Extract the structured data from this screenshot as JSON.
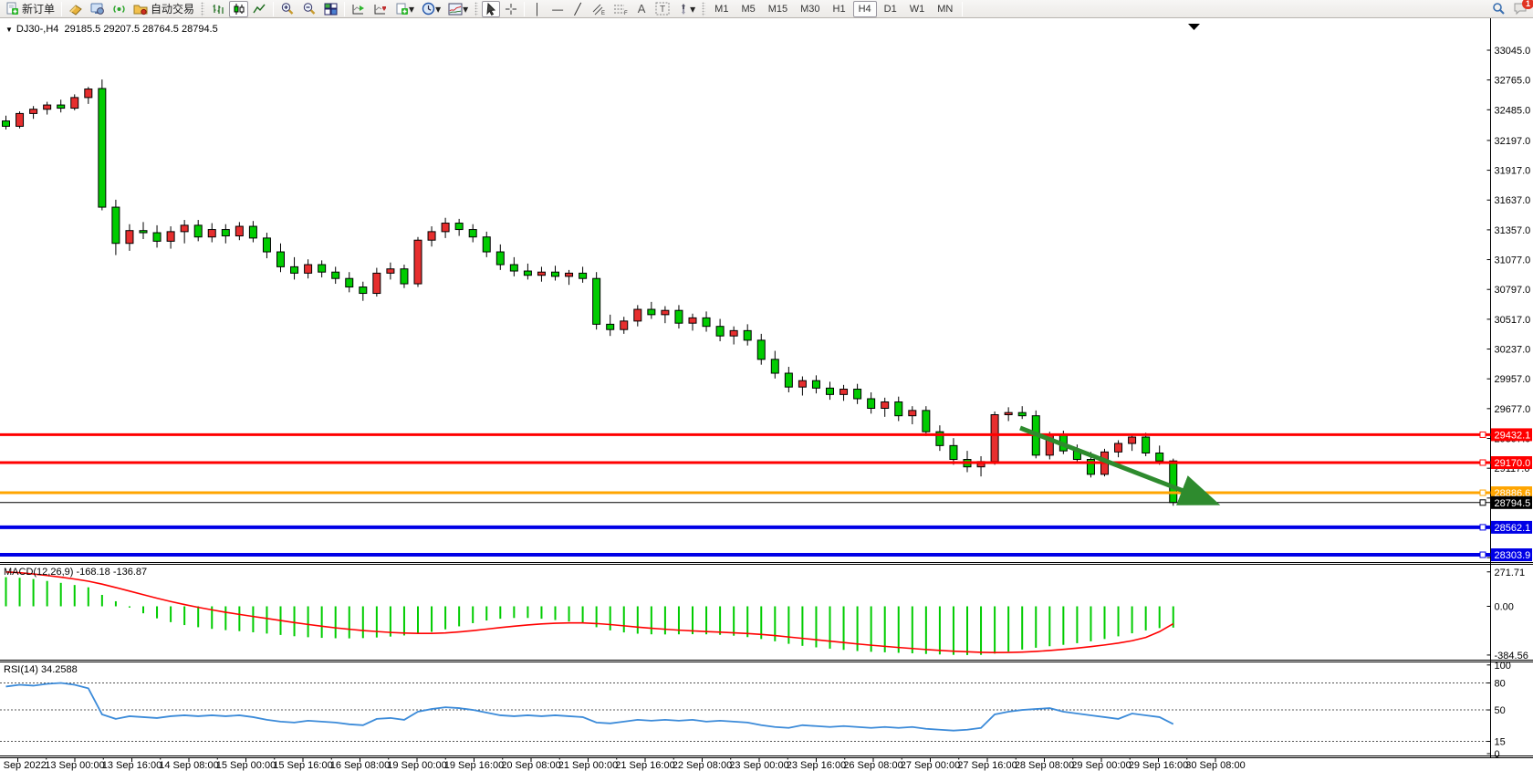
{
  "toolbar": {
    "new_order": "新订单",
    "auto_trading": "自动交易",
    "text_tool": "A",
    "label_tool": "T",
    "channel_sub": "E",
    "fibo_sub": "F",
    "timeframes": [
      "M1",
      "M5",
      "M15",
      "M30",
      "H1",
      "H4",
      "D1",
      "W1",
      "MN"
    ],
    "active_timeframe": "H4",
    "notification_badge": "1"
  },
  "chart": {
    "title_symbol": "DJ30-,H4",
    "title_ohlc": "29185.5 29207.5 28764.5 28794.5",
    "macd_label": "MACD(12,26,9) -168.18 -136.87",
    "rsi_label": "RSI(14) 34.2588"
  },
  "chart_data": {
    "type": "candlestick",
    "symbol": "DJ30-",
    "period": "H4",
    "current_bar": {
      "open": 29185.5,
      "high": 29207.5,
      "low": 28764.5,
      "close": 28794.5
    },
    "colors": {
      "up_body": "#e62e2e",
      "down_body": "#00cc00",
      "outline": "#000000",
      "background": "#ffffff",
      "axis_text": "#000000"
    },
    "price_axis_ticks": [
      "33045.0",
      "32765.0",
      "32485.0",
      "32197.0",
      "31917.0",
      "31637.0",
      "31357.0",
      "31077.0",
      "30797.0",
      "30517.0",
      "30237.0",
      "29957.0",
      "29677.0",
      "29397.0",
      "29117.0",
      "28837.0",
      "28557.0",
      "28277.0"
    ],
    "time_axis_labels": [
      "12 Sep 2022",
      "13 Sep 00:00",
      "13 Sep 16:00",
      "14 Sep 08:00",
      "15 Sep 00:00",
      "15 Sep 16:00",
      "16 Sep 08:00",
      "19 Sep 00:00",
      "19 Sep 16:00",
      "20 Sep 08:00",
      "21 Sep 00:00",
      "21 Sep 16:00",
      "22 Sep 08:00",
      "23 Sep 00:00",
      "23 Sep 16:00",
      "26 Sep 08:00",
      "27 Sep 00:00",
      "27 Sep 16:00",
      "28 Sep 08:00",
      "29 Sep 00:00",
      "29 Sep 16:00",
      "30 Sep 08:00"
    ],
    "hlines": [
      {
        "label": "29432.1",
        "price": 29432.1,
        "color": "#ff0000",
        "width": 3
      },
      {
        "label": "29170.0",
        "price": 29170.0,
        "color": "#ff0000",
        "width": 3
      },
      {
        "label": "28886.6",
        "price": 28886.6,
        "color": "#ffa500",
        "width": 3
      },
      {
        "label": "28794.5",
        "price": 28794.5,
        "color": "#000000",
        "width": 1
      },
      {
        "label": "28562.1",
        "price": 28562.1,
        "color": "#0000e6",
        "width": 4
      },
      {
        "label": "28303.9",
        "price": 28303.9,
        "color": "#0000e6",
        "width": 4
      }
    ],
    "arrow": {
      "from": [
        1118,
        449
      ],
      "to": [
        1328,
        530
      ],
      "color": "#2e8b2e"
    },
    "candles_ohlc": [
      [
        32380,
        32430,
        32300,
        32330
      ],
      [
        32330,
        32470,
        32310,
        32450
      ],
      [
        32450,
        32520,
        32400,
        32490
      ],
      [
        32490,
        32560,
        32440,
        32530
      ],
      [
        32530,
        32580,
        32460,
        32500
      ],
      [
        32500,
        32630,
        32480,
        32600
      ],
      [
        32600,
        32700,
        32540,
        32680
      ],
      [
        32685,
        32770,
        31540,
        31570
      ],
      [
        31570,
        31640,
        31120,
        31230
      ],
      [
        31230,
        31410,
        31160,
        31350
      ],
      [
        31350,
        31430,
        31270,
        31330
      ],
      [
        31330,
        31400,
        31190,
        31250
      ],
      [
        31250,
        31390,
        31180,
        31340
      ],
      [
        31340,
        31450,
        31230,
        31400
      ],
      [
        31400,
        31450,
        31250,
        31290
      ],
      [
        31290,
        31420,
        31240,
        31360
      ],
      [
        31360,
        31410,
        31230,
        31300
      ],
      [
        31300,
        31430,
        31260,
        31390
      ],
      [
        31390,
        31440,
        31240,
        31280
      ],
      [
        31280,
        31330,
        31090,
        31150
      ],
      [
        31150,
        31230,
        30960,
        31010
      ],
      [
        31010,
        31100,
        30890,
        30950
      ],
      [
        30950,
        31080,
        30900,
        31030
      ],
      [
        31030,
        31070,
        30910,
        30960
      ],
      [
        30960,
        31010,
        30850,
        30900
      ],
      [
        30900,
        30960,
        30770,
        30820
      ],
      [
        30820,
        30870,
        30690,
        30760
      ],
      [
        30760,
        31000,
        30730,
        30950
      ],
      [
        30950,
        31050,
        30890,
        30990
      ],
      [
        30990,
        31030,
        30810,
        30850
      ],
      [
        30850,
        31290,
        30820,
        31260
      ],
      [
        31260,
        31390,
        31200,
        31340
      ],
      [
        31340,
        31470,
        31280,
        31420
      ],
      [
        31420,
        31460,
        31300,
        31360
      ],
      [
        31360,
        31410,
        31240,
        31290
      ],
      [
        31290,
        31340,
        31100,
        31150
      ],
      [
        31150,
        31220,
        30980,
        31030
      ],
      [
        31030,
        31100,
        30920,
        30970
      ],
      [
        30970,
        31040,
        30890,
        30930
      ],
      [
        30930,
        31010,
        30870,
        30960
      ],
      [
        30960,
        31020,
        30880,
        30920
      ],
      [
        30920,
        30980,
        30840,
        30950
      ],
      [
        30950,
        31010,
        30860,
        30900
      ],
      [
        30900,
        30960,
        30420,
        30470
      ],
      [
        30470,
        30560,
        30360,
        30420
      ],
      [
        30420,
        30540,
        30380,
        30500
      ],
      [
        30500,
        30650,
        30450,
        30610
      ],
      [
        30610,
        30680,
        30520,
        30560
      ],
      [
        30560,
        30640,
        30480,
        30600
      ],
      [
        30600,
        30650,
        30430,
        30480
      ],
      [
        30480,
        30570,
        30410,
        30530
      ],
      [
        30530,
        30590,
        30400,
        30450
      ],
      [
        30450,
        30520,
        30310,
        30360
      ],
      [
        30360,
        30450,
        30280,
        30410
      ],
      [
        30410,
        30470,
        30270,
        30320
      ],
      [
        30320,
        30380,
        30090,
        30140
      ],
      [
        30140,
        30220,
        29960,
        30010
      ],
      [
        30010,
        30070,
        29830,
        29880
      ],
      [
        29880,
        29980,
        29800,
        29940
      ],
      [
        29940,
        29990,
        29820,
        29870
      ],
      [
        29870,
        29930,
        29760,
        29810
      ],
      [
        29810,
        29900,
        29750,
        29860
      ],
      [
        29860,
        29910,
        29720,
        29770
      ],
      [
        29770,
        29830,
        29630,
        29680
      ],
      [
        29680,
        29780,
        29600,
        29740
      ],
      [
        29740,
        29790,
        29560,
        29610
      ],
      [
        29610,
        29700,
        29530,
        29660
      ],
      [
        29660,
        29700,
        29420,
        29460
      ],
      [
        29460,
        29520,
        29280,
        29330
      ],
      [
        29330,
        29400,
        29150,
        29200
      ],
      [
        29200,
        29280,
        29080,
        29130
      ],
      [
        29130,
        29230,
        29040,
        29180
      ],
      [
        29180,
        29650,
        29150,
        29620
      ],
      [
        29620,
        29690,
        29560,
        29640
      ],
      [
        29640,
        29700,
        29580,
        29610
      ],
      [
        29610,
        29660,
        29210,
        29240
      ],
      [
        29240,
        29460,
        29200,
        29430
      ],
      [
        29430,
        29470,
        29250,
        29280
      ],
      [
        29280,
        29340,
        29160,
        29200
      ],
      [
        29200,
        29270,
        29030,
        29060
      ],
      [
        29060,
        29300,
        29040,
        29270
      ],
      [
        29270,
        29380,
        29220,
        29350
      ],
      [
        29350,
        29440,
        29280,
        29410
      ],
      [
        29410,
        29450,
        29230,
        29260
      ],
      [
        29260,
        29330,
        29150,
        29185
      ],
      [
        29185.5,
        29207.5,
        28764.5,
        28794.5
      ]
    ],
    "indicators": {
      "macd": {
        "label": "MACD(12,26,9) -168.18 -136.87",
        "axis_ticks": [
          "271.71",
          "0.00",
          "-384.56"
        ],
        "histogram_color": "#00cc00",
        "signal_color": "#ff0000",
        "histogram": [
          230,
          225,
          215,
          200,
          185,
          168,
          150,
          90,
          40,
          -10,
          -55,
          -95,
          -125,
          -148,
          -165,
          -178,
          -188,
          -196,
          -205,
          -215,
          -226,
          -236,
          -244,
          -249,
          -252,
          -253,
          -251,
          -246,
          -239,
          -230,
          -218,
          -202,
          -182,
          -158,
          -133,
          -112,
          -98,
          -92,
          -92,
          -98,
          -108,
          -120,
          -133,
          -165,
          -190,
          -206,
          -216,
          -221,
          -222,
          -221,
          -220,
          -221,
          -225,
          -232,
          -243,
          -258,
          -276,
          -296,
          -312,
          -324,
          -334,
          -344,
          -353,
          -359,
          -363,
          -367,
          -371,
          -376,
          -380,
          -383,
          -384.56,
          -383,
          -373,
          -357,
          -341,
          -327,
          -315,
          -304,
          -291,
          -276,
          -258,
          -237,
          -213,
          -190,
          -172,
          -168.18
        ],
        "signal": [
          271,
          265,
          255,
          243,
          230,
          215,
          198,
          175,
          148,
          120,
          92,
          64,
          38,
          14,
          -8,
          -28,
          -47,
          -64,
          -80,
          -96,
          -112,
          -128,
          -143,
          -157,
          -170,
          -181,
          -191,
          -199,
          -206,
          -211,
          -214,
          -214,
          -210,
          -202,
          -192,
          -180,
          -168,
          -157,
          -147,
          -139,
          -134,
          -131,
          -131,
          -136,
          -144,
          -154,
          -164,
          -173,
          -181,
          -188,
          -194,
          -199,
          -204,
          -209,
          -215,
          -222,
          -231,
          -242,
          -253,
          -264,
          -275,
          -286,
          -297,
          -307,
          -316,
          -325,
          -333,
          -341,
          -348,
          -354,
          -359,
          -363,
          -365,
          -364,
          -361,
          -356,
          -349,
          -340,
          -330,
          -318,
          -305,
          -290,
          -272,
          -246,
          -200,
          -136.87
        ]
      },
      "rsi": {
        "label": "RSI(14) 34.2588",
        "axis_ticks": [
          "100",
          "80",
          "50",
          "15",
          "0"
        ],
        "levels": [
          80,
          50,
          15
        ],
        "line_color": "#3c8bd9",
        "values": [
          76,
          78,
          77,
          79,
          80,
          78,
          74,
          45,
          40,
          43,
          42,
          41,
          43,
          44,
          43,
          44,
          43,
          44,
          42,
          39,
          37,
          36,
          38,
          37,
          36,
          34,
          33,
          40,
          41,
          39,
          48,
          51,
          53,
          52,
          50,
          47,
          44,
          43,
          44,
          43,
          44,
          43,
          42,
          36,
          35,
          37,
          39,
          38,
          39,
          38,
          39,
          37,
          38,
          37,
          36,
          33,
          31,
          30,
          33,
          32,
          31,
          32,
          31,
          30,
          31,
          30,
          31,
          29,
          28,
          27,
          28,
          30,
          45,
          48,
          50,
          51,
          52,
          48,
          46,
          44,
          42,
          40,
          46,
          44,
          42,
          34.26
        ]
      }
    }
  }
}
